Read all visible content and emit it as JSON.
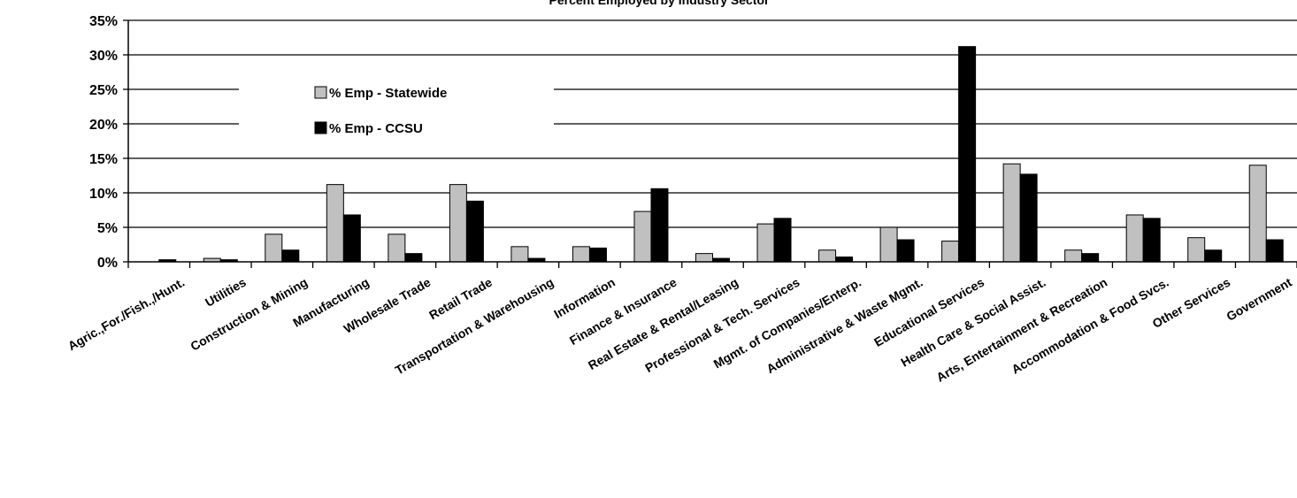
{
  "chart_data": {
    "type": "bar",
    "title": "Percent Employed by Industry Sector",
    "categories": [
      "Agric.,For./Fish.,/Hunt.",
      "Utilities",
      "Construction & Mining",
      "Manufacturing",
      "Wholesale Trade",
      "Retail Trade",
      "Transportation & Warehousing",
      "Information",
      "Finance & Insurance",
      "Real Estate & Rental/Leasing",
      "Professional & Tech. Services",
      "Mgmt. of Companies/Enterp.",
      "Administrative & Waste Mgmt.",
      "Educational Services",
      "Health Care & Social Assist.",
      "Arts, Entertainment & Recreation",
      "Accommodation & Food Svcs.",
      "Other Services",
      "Government"
    ],
    "series": [
      {
        "name": "% Emp - Statewide",
        "color": "#c0c0c0",
        "values": [
          0.0,
          0.5,
          4.0,
          11.2,
          4.0,
          11.2,
          2.2,
          2.2,
          7.3,
          1.2,
          5.5,
          1.7,
          5.0,
          3.0,
          14.2,
          1.7,
          6.8,
          3.5,
          14.0
        ]
      },
      {
        "name": "% Emp - CCSU",
        "color": "#000000",
        "values": [
          0.3,
          0.3,
          1.7,
          6.8,
          1.2,
          8.8,
          0.5,
          2.0,
          10.6,
          0.5,
          6.3,
          0.7,
          3.2,
          31.2,
          12.7,
          1.2,
          6.3,
          1.7,
          3.2
        ]
      }
    ],
    "ylim": [
      0,
      35
    ],
    "yticks": [
      "0%",
      "5%",
      "10%",
      "15%",
      "20%",
      "25%",
      "30%",
      "35%"
    ],
    "ytick_values": [
      0,
      5,
      10,
      15,
      20,
      25,
      30,
      35
    ],
    "grid": true,
    "legend_position": "top-left, inside plot"
  }
}
